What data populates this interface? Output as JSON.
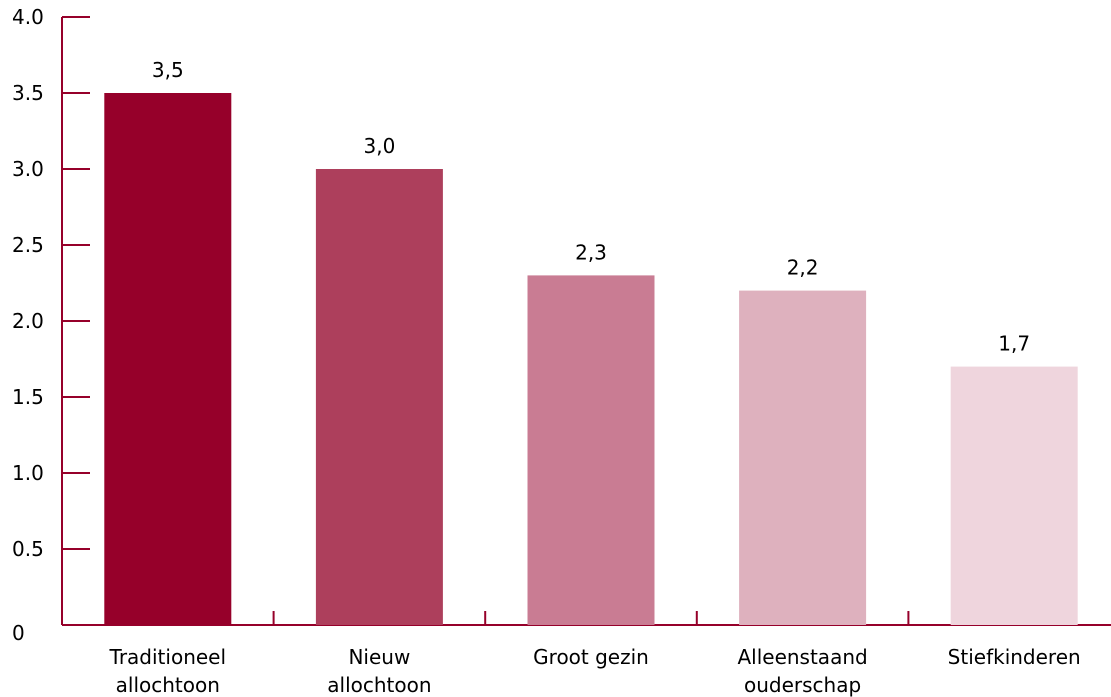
{
  "chart_data": {
    "type": "bar",
    "title": "",
    "xlabel": "",
    "ylabel": "",
    "categories": [
      [
        "Traditioneel",
        "allochtoon"
      ],
      [
        "Nieuw",
        "allochtoon"
      ],
      [
        "Groot gezin"
      ],
      [
        "Alleenstaand",
        "ouderschap"
      ],
      [
        "Stiefkinderen"
      ]
    ],
    "values": [
      3.5,
      3.0,
      2.3,
      2.2,
      1.7
    ],
    "value_labels": [
      "3,5",
      "3,0",
      "2,3",
      "2,2",
      "1,7"
    ],
    "bar_colors": [
      "#96002a",
      "#ad3f5c",
      "#c97c93",
      "#deb1be",
      "#efd5dd"
    ],
    "axis_color": "#96002a",
    "ylim": [
      0,
      4.0
    ],
    "yticks": [
      0,
      0.5,
      1.0,
      1.5,
      2.0,
      2.5,
      3.0,
      3.5,
      4.0
    ],
    "ytick_labels": [
      "0",
      "0.5",
      "1.0",
      "1.5",
      "2.0",
      "2.5",
      "3.0",
      "3.5",
      "4.0"
    ],
    "grid": false,
    "legend": "none"
  }
}
